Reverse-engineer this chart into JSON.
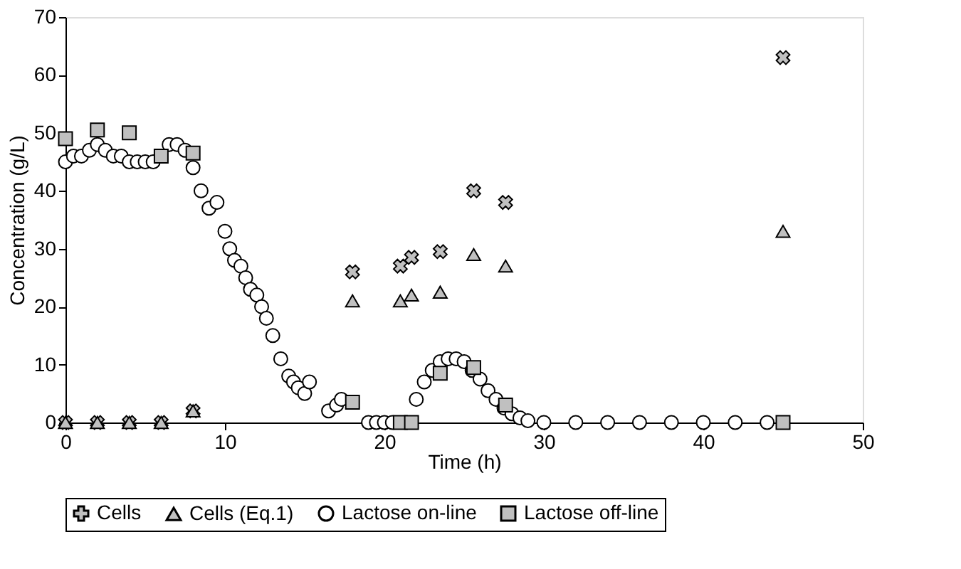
{
  "chart_data": {
    "type": "scatter",
    "xlabel": "Time (h)",
    "ylabel": "Concentration (g/L)",
    "xlim": [
      0,
      50
    ],
    "xticks": [
      0,
      10,
      20,
      30,
      40,
      50
    ],
    "ylim": [
      0,
      70
    ],
    "yticks": [
      0,
      10,
      20,
      30,
      40,
      50,
      60,
      70
    ],
    "grid": false,
    "legend": "bottom",
    "series": [
      {
        "name": "Cells",
        "color": "#c0c0c0",
        "marker": "cross",
        "x": [
          0,
          2,
          4,
          6,
          8,
          18,
          21,
          21.7,
          23.5,
          25.6,
          27.6,
          45
        ],
        "values": [
          0,
          0,
          0,
          0,
          2,
          26,
          27,
          28.5,
          29.5,
          40,
          38,
          63
        ]
      },
      {
        "name": "Cells (Eq.1)",
        "color": "#c0c0c0",
        "marker": "triangle",
        "x": [
          0,
          2,
          4,
          6,
          8,
          18,
          21,
          21.7,
          23.5,
          25.6,
          27.6,
          45
        ],
        "values": [
          0,
          0,
          0,
          0,
          2,
          21,
          21,
          22,
          22.5,
          29,
          27,
          33
        ]
      },
      {
        "name": "Lactose on-line",
        "color": "#ffffff",
        "marker": "circle",
        "x": [
          0,
          0.5,
          1,
          1.5,
          2,
          2.5,
          3,
          3.5,
          4,
          4.5,
          5,
          5.5,
          6.5,
          7,
          7.5,
          8,
          8.5,
          9,
          9.5,
          10,
          10.3,
          10.6,
          11,
          11.3,
          11.6,
          12,
          12.3,
          12.6,
          13,
          13.5,
          14,
          14.3,
          14.6,
          15,
          15.3,
          16.5,
          17,
          17.3,
          19,
          19.5,
          20,
          20.5,
          22,
          22.5,
          23,
          23.5,
          24,
          24.5,
          25,
          25.5,
          26,
          26.5,
          27,
          27.5,
          28,
          28.5,
          29,
          30,
          32,
          34,
          36,
          38,
          40,
          42,
          44
        ],
        "values": [
          45,
          46,
          46,
          47,
          48,
          47,
          46,
          46,
          45,
          45,
          45,
          45,
          48,
          48,
          47,
          44,
          40,
          37,
          38,
          33,
          30,
          28,
          27,
          25,
          23,
          22,
          20,
          18,
          15,
          11,
          8,
          7,
          6,
          5,
          7,
          2,
          3,
          4,
          0,
          0,
          0,
          0,
          4,
          7,
          9,
          10.5,
          11,
          11,
          10.5,
          9,
          7.5,
          5.5,
          4,
          2.5,
          1.5,
          0.8,
          0.3,
          0,
          0,
          0,
          0,
          0,
          0,
          0,
          0
        ]
      },
      {
        "name": "Lactose off-line",
        "color": "#c0c0c0",
        "marker": "square",
        "x": [
          0,
          2,
          4,
          6,
          8,
          18,
          21,
          21.7,
          23.5,
          25.6,
          27.6,
          45
        ],
        "values": [
          49,
          50.5,
          50,
          46,
          46.5,
          3.5,
          0,
          0,
          8.5,
          9.5,
          3,
          0
        ]
      }
    ]
  }
}
